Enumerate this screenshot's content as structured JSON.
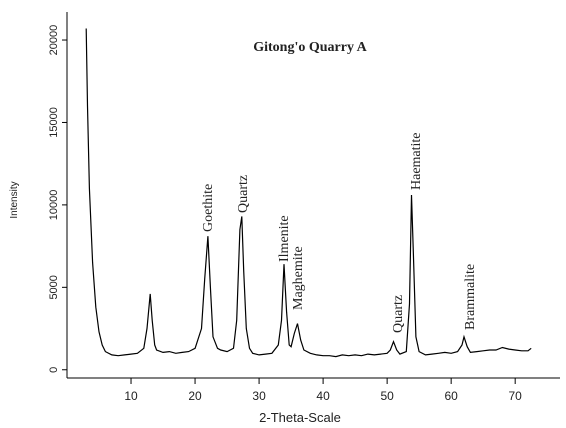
{
  "chart_data": {
    "type": "line",
    "title": "Gitong'o Quarry A",
    "xlabel": "2-Theta-Scale",
    "ylabel": "Intensity",
    "annotations": [
      "Goethite",
      "Quartz",
      "Ilmenite",
      "Maghemite",
      "Quartz",
      "Haematite",
      "Brammalite"
    ],
    "color": "#000000",
    "x": [
      3,
      3.2,
      3.5,
      4,
      4.5,
      5,
      5.5,
      6,
      7,
      8,
      9,
      10,
      11,
      12,
      12.5,
      13,
      13.3,
      13.7,
      14,
      15,
      16,
      17,
      18,
      19,
      20,
      21,
      21.5,
      22,
      22.4,
      22.8,
      23.5,
      24,
      25,
      26,
      26.5,
      27,
      27.3,
      27.6,
      28,
      28.5,
      29,
      30,
      31,
      32,
      33,
      33.5,
      33.9,
      34.3,
      34.7,
      35,
      35.5,
      36,
      36.5,
      37,
      38,
      39,
      40,
      41,
      42,
      43,
      44,
      45,
      46,
      47,
      48,
      49,
      50,
      50.5,
      51,
      51.5,
      52,
      53,
      53.5,
      53.8,
      54.1,
      54.5,
      55,
      56,
      57,
      58,
      59,
      60,
      61,
      61.7,
      62,
      62.5,
      63,
      64,
      65,
      66,
      67,
      68,
      69,
      70,
      71,
      72,
      72.5
    ],
    "values": [
      20700,
      16000,
      11000,
      6500,
      3800,
      2300,
      1500,
      1100,
      900,
      850,
      900,
      950,
      1000,
      1300,
      2500,
      4600,
      3000,
      1500,
      1200,
      1050,
      1100,
      1000,
      1050,
      1100,
      1300,
      2500,
      5500,
      8100,
      5000,
      2000,
      1300,
      1200,
      1100,
      1300,
      3000,
      8500,
      9300,
      6000,
      2500,
      1300,
      1000,
      900,
      950,
      1000,
      1500,
      3000,
      6400,
      3500,
      1500,
      1400,
      2200,
      2800,
      1800,
      1200,
      1000,
      900,
      850,
      850,
      800,
      900,
      850,
      900,
      850,
      950,
      900,
      950,
      1000,
      1200,
      1700,
      1200,
      950,
      1100,
      4000,
      10600,
      7000,
      2000,
      1100,
      900,
      950,
      1000,
      1050,
      1000,
      1100,
      1500,
      2000,
      1400,
      1050,
      1100,
      1150,
      1200,
      1200,
      1350,
      1250,
      1200,
      1150,
      1150,
      1300
    ],
    "xlim": [
      0,
      77
    ],
    "ylim": [
      -500,
      21700
    ],
    "xticks": [
      10,
      20,
      30,
      40,
      50,
      60,
      70
    ],
    "yticks": [
      0,
      5000,
      10000,
      15000,
      20000
    ]
  }
}
